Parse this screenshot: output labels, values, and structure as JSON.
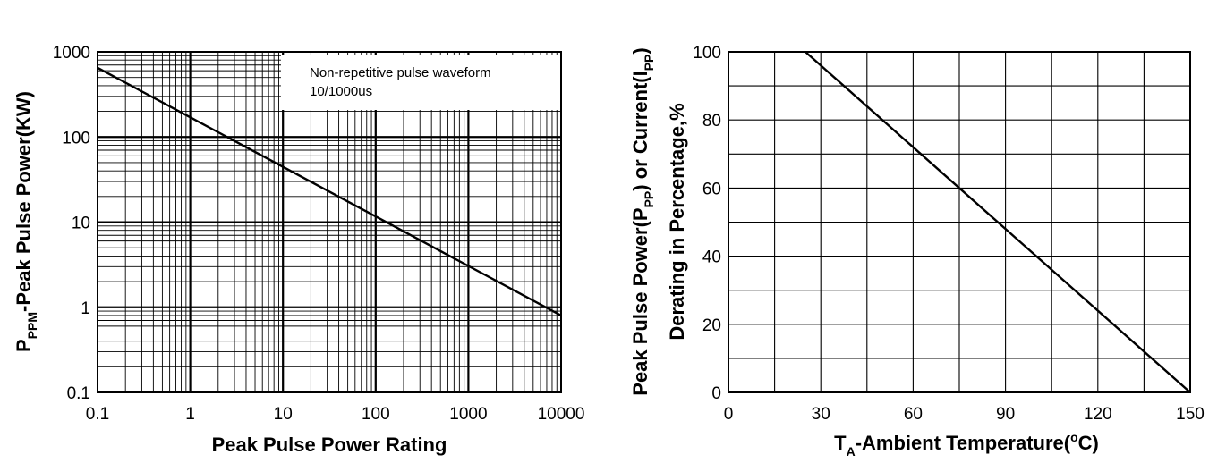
{
  "chart_data": [
    {
      "type": "line",
      "scale": {
        "x": "log",
        "y": "log"
      },
      "xlim": [
        0.1,
        10000
      ],
      "ylim": [
        0.1,
        1000
      ],
      "x_ticks": [
        "0.1",
        "1",
        "10",
        "100",
        "1000",
        "10000"
      ],
      "y_ticks": [
        "0.1",
        "1",
        "10",
        "100",
        "1000"
      ],
      "xlabel": "Peak Pulse Power Rating",
      "ylabel": {
        "prefix": "P",
        "sub": "PPM",
        "suffix": "-Peak Pulse Power(KW)"
      },
      "grid": true,
      "annotation": [
        "Non-repetitive pulse waveform",
        "10/1000us"
      ],
      "series": [
        {
          "x": [
            0.1,
            10000
          ],
          "y": [
            650,
            0.8
          ]
        }
      ],
      "line_color": "#000000"
    },
    {
      "type": "line",
      "scale": {
        "x": "linear",
        "y": "linear"
      },
      "xlim": [
        0,
        150
      ],
      "ylim": [
        0,
        100
      ],
      "x_ticks": [
        "0",
        "30",
        "60",
        "90",
        "120",
        "150"
      ],
      "y_ticks": [
        "0",
        "20",
        "40",
        "60",
        "80",
        "100"
      ],
      "xlabel": {
        "prefix": "T",
        "sub": "A",
        "mid": "-Ambient Temperature(",
        "sup": "o",
        "suffix": "C)"
      },
      "ylabel_line1": {
        "a": "Peak Pulse Power(P",
        "sub1": "PP",
        "b": ") or Current(I",
        "sub2": "PP",
        "c": ")"
      },
      "ylabel_line2": "Derating in Percentage,%",
      "grid": true,
      "series": [
        {
          "x": [
            25,
            150
          ],
          "y": [
            100,
            0
          ]
        }
      ],
      "line_color": "#000000"
    }
  ]
}
